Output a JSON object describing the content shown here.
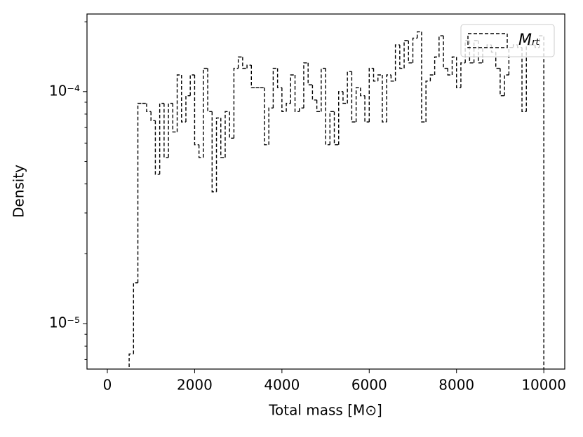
{
  "chart_data": {
    "type": "histogram",
    "histtype": "step",
    "ylabel": "Density",
    "xlabel": "Total mass [M⊙]",
    "bins": [
      500,
      600,
      700,
      800,
      900,
      1000,
      1100,
      1200,
      1300,
      1400,
      1500,
      1600,
      1700,
      1800,
      1900,
      2000,
      2100,
      2200,
      2300,
      2400,
      2500,
      2600,
      2700,
      2800,
      2900,
      3000,
      3100,
      3200,
      3300,
      3400,
      3500,
      3600,
      3700,
      3800,
      3900,
      4000,
      4100,
      4200,
      4300,
      4400,
      4500,
      4600,
      4700,
      4800,
      4900,
      5000,
      5100,
      5200,
      5300,
      5400,
      5500,
      5600,
      5700,
      5800,
      5900,
      6000,
      6100,
      6200,
      6300,
      6400,
      6500,
      6600,
      6700,
      6800,
      6900,
      7000,
      7100,
      7200,
      7300,
      7400,
      7500,
      7600,
      7700,
      7800,
      7900,
      8000,
      8100,
      8200,
      8300,
      8400,
      8500,
      8600,
      8700,
      8800,
      8900,
      9000,
      9100,
      9200,
      9300,
      9400,
      9500,
      9600,
      9700,
      9800,
      9900,
      10000
    ],
    "series": [
      {
        "name": "Mᵣₜ",
        "color": "#000000",
        "linestyle": "dashed",
        "values": [
          7.4e-06,
          1.5e-05,
          8.9e-05,
          8.9e-05,
          8.2e-05,
          7.5e-05,
          4.4e-05,
          8.9e-05,
          5.2e-05,
          8.9e-05,
          6.7e-05,
          0.000118,
          7.4e-05,
          9.6e-05,
          0.000118,
          5.9e-05,
          5.2e-05,
          0.000126,
          8.2e-05,
          3.7e-05,
          7.7e-05,
          5.2e-05,
          8.2e-05,
          6.3e-05,
          0.000126,
          0.000141,
          0.000126,
          0.00013,
          0.000104,
          0.000104,
          0.000104,
          5.9e-05,
          8.5e-05,
          0.000126,
          0.000104,
          8.2e-05,
          8.9e-05,
          0.000118,
          8.2e-05,
          8.5e-05,
          0.000133,
          0.000107,
          9.2e-05,
          8.2e-05,
          0.000126,
          5.9e-05,
          8.2e-05,
          5.9e-05,
          0.0001,
          8.9e-05,
          0.000122,
          7.4e-05,
          0.000104,
          9.6e-05,
          7.4e-05,
          0.000126,
          0.000111,
          0.000118,
          7.4e-05,
          0.000118,
          0.000111,
          0.000159,
          0.000126,
          0.000166,
          0.000133,
          0.00017,
          0.000181,
          7.4e-05,
          0.000111,
          0.000118,
          0.000141,
          0.000174,
          0.000126,
          0.000118,
          0.000141,
          0.000104,
          0.000133,
          0.000166,
          0.000133,
          0.000166,
          0.000133,
          0.000155,
          0.000159,
          0.000148,
          0.000126,
          9.6e-05,
          0.000118,
          0.000155,
          0.000159,
          0.000155,
          8.2e-05,
          0.000159,
          0.000159,
          0.000155,
          0.000174
        ]
      }
    ],
    "xlim": [
      -466,
      10480
    ],
    "xticks": [
      0,
      2000,
      4000,
      6000,
      8000,
      10000
    ],
    "ylim": [
      6.37e-06,
      0.000216
    ],
    "yscale": "log",
    "yticks": [
      {
        "value": 1e-05,
        "label": "10⁻⁵"
      },
      {
        "value": 0.0001,
        "label": "10⁻⁴"
      }
    ],
    "yminorticks": [
      7e-06,
      8e-06,
      9e-06,
      2e-05,
      3e-05,
      4e-05,
      5e-05,
      6e-05,
      7e-05,
      8e-05,
      9e-05,
      0.0002
    ],
    "legend": "upper right"
  }
}
